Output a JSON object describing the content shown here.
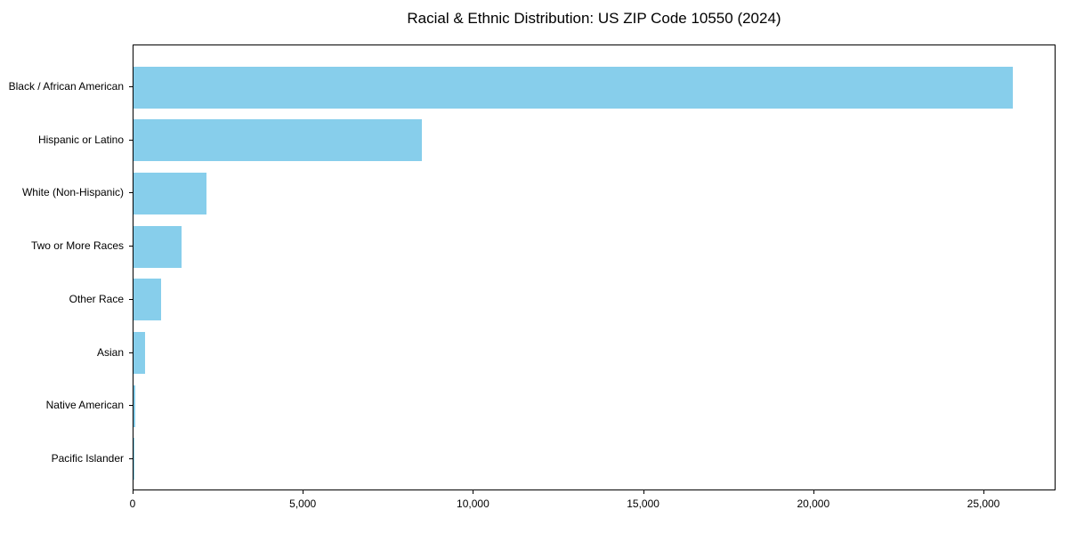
{
  "chart_data": {
    "type": "bar",
    "orientation": "horizontal",
    "title": "Racial & Ethnic Distribution: US ZIP Code 10550 (2024)",
    "categories": [
      "Black / African American",
      "Hispanic or Latino",
      "White (Non-Hispanic)",
      "Two or More Races",
      "Other Race",
      "Asian",
      "Native American",
      "Pacific Islander"
    ],
    "values": [
      25830,
      8470,
      2140,
      1410,
      800,
      350,
      60,
      15
    ],
    "xlabel": "",
    "ylabel": "",
    "xlim": [
      0,
      27118
    ],
    "x_ticks": [
      0,
      5000,
      10000,
      15000,
      20000,
      25000
    ],
    "x_tick_labels": [
      "0",
      "5,000",
      "10,000",
      "15,000",
      "20,000",
      "25,000"
    ],
    "bar_color": "#87CEEB",
    "background_color": "#ffffff",
    "spine_color": "#000000",
    "grid": false,
    "legend": null
  }
}
